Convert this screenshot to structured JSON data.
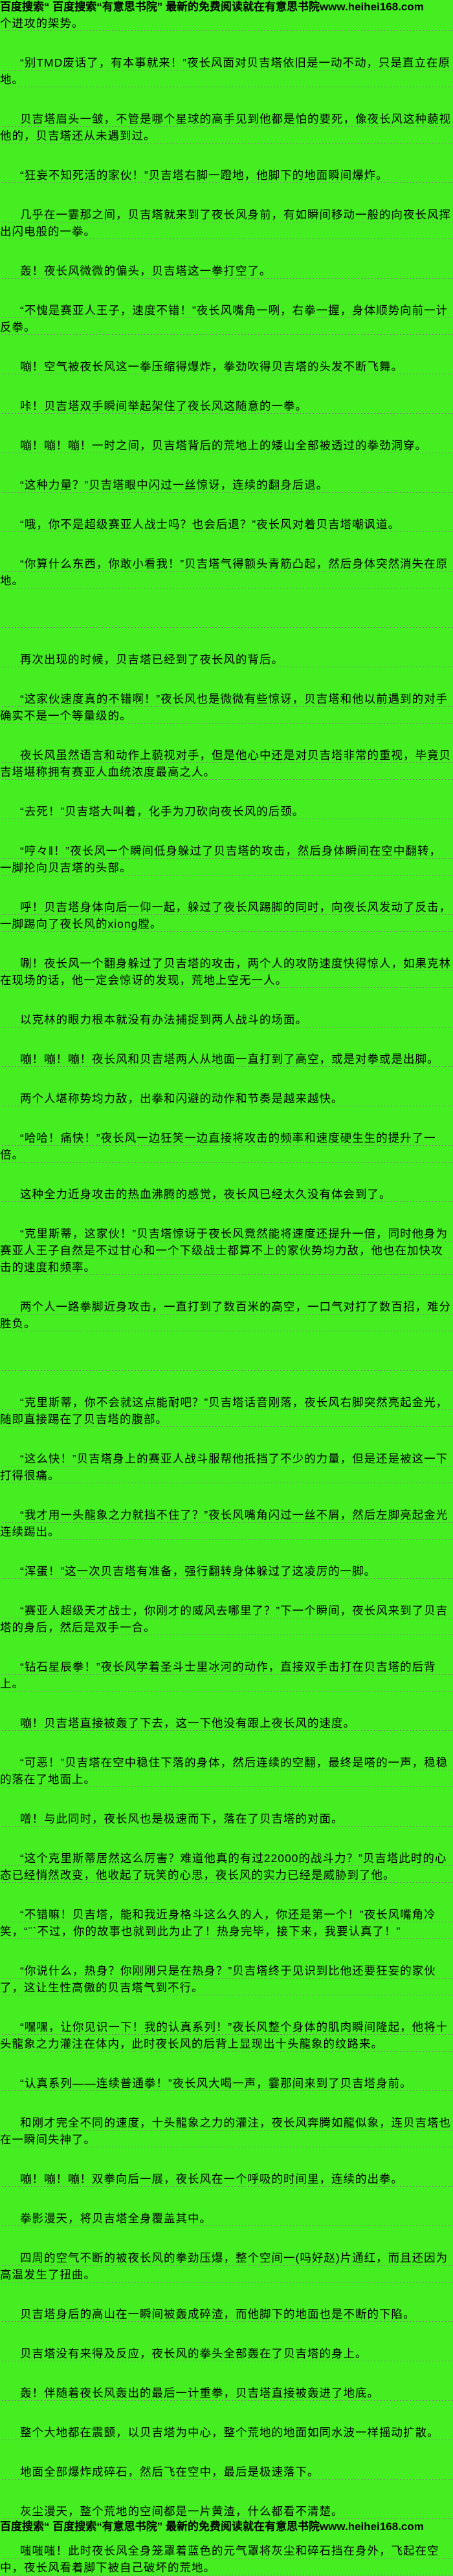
{
  "colors": {
    "background": "#44ee21",
    "text": "#000000",
    "divider_dash": "#8a7a8a"
  },
  "header": {
    "text": "百度搜索“ 百度搜索“有意思书院” 最新的免费阅读就在有意思书院www.heihei168.com"
  },
  "footer": {
    "text": "百度搜索“ 百度搜索“有意思书院” 最新的免费阅读就在有意思书院www.heihei168.com"
  },
  "content": {
    "site_name": "有意思书院",
    "site_url": "www.heihei168.com",
    "paragraphs": [
      "个进攻的架势。",
      "“别TMD废话了，有本事就来！”夜长风面对贝吉塔依旧是一动不动，只是直立在原地。",
      "贝吉塔眉头一皱，不管是哪个星球的高手见到他都是怕的要死，像夜长风这种藐视他的，贝吉塔还从未遇到过。",
      "“狂妄不知死活的家伙！”贝吉塔右脚一蹬地，他脚下的地面瞬间爆炸。",
      "几乎在一霎那之间，贝吉塔就来到了夜长风身前，有如瞬间移动一般的向夜长风挥出闪电般的一拳。",
      "轰！夜长风微微的偏头，贝吉塔这一拳打空了。",
      "“不愧是赛亚人王子，速度不错！”夜长风嘴角一咧，右拳一握，身体顺势向前一计反拳。",
      "嘣！空气被夜长风这一拳压缩得爆炸，拳劲吹得贝吉塔的头发不断飞舞。",
      "咔！贝吉塔双手瞬间举起架住了夜长风这随意的一拳。",
      "嘣！嘣！嘣！一时之间，贝吉塔背后的荒地上的矮山全部被透过的拳劲洞穿。",
      "“这种力量？”贝吉塔眼中闪过一丝惊讶，连续的翻身后退。",
      "“哦，你不是超级赛亚人战士吗？也会后退？”夜长风对着贝吉塔嘲讽道。",
      "“你算什么东西，你敢小看我！”贝吉塔气得额头青筋凸起，然后身体突然消失在原地。",
      "",
      "再次出现的时候，贝吉塔已经到了夜长风的背后。",
      "“这家伙速度真的不错啊！”夜长风也是微微有些惊讶，贝吉塔和他以前遇到的对手确实不是一个等量级的。",
      "夜长风虽然语言和动作上藐视对手，但是他心中还是对贝吉塔非常的重视，毕竟贝吉塔堪称拥有赛亚人血统浓度最高之人。",
      "“去死！”贝吉塔大叫着，化手为刀砍向夜长风的后颈。",
      "“哼々‖！”夜长风一个瞬间低身躲过了贝吉塔的攻击，然后身体瞬间在空中翻转，一脚抡向贝吉塔的头部。",
      "呼！贝吉塔身体向后一仰一起，躲过了夜长风踢脚的同时，向夜长风发动了反击，一脚踢向了夜长风的xiong膛。",
      "唰！夜长风一个翻身躲过了贝吉塔的攻击，两个人的攻防速度快得惊人，如果克林在现场的话，他一定会惊讶的发现，荒地上空无一人。",
      "以克林的眼力根本就没有办法捕捉到两人战斗的场面。",
      "嘣！嘣！嘣！夜长风和贝吉塔两人从地面一直打到了高空，或是对拳或是出脚。",
      "两个人堪称势均力敌，出拳和闪避的动作和节奏是越来越快。",
      "“哈哈！痛快！”夜长风一边狂笑一边直接将攻击的频率和速度硬生生的提升了一倍。",
      "这种全力近身攻击的热血沸腾的感觉，夜长风已经太久没有体会到了。",
      "“克里斯蒂，这家伙！”贝吉塔惊讶于夜长风竟然能将速度还提升一倍，同时他身为赛亚人王子自然是不过甘心和一个下级战士都算不上的家伙势均力敌，他也在加快攻击的速度和频率。",
      "两个人一路拳脚近身攻击，一直打到了数百米的高空，一口气对打了数百招，难分胜负。",
      "",
      "“克里斯蒂，你不会就这点能耐吧？”贝吉塔话音刚落，夜长风右脚突然亮起金光，随即直接踢在了贝吉塔的腹部。",
      "“这么快！”贝吉塔身上的赛亚人战斗服帮他抵挡了不少的力量，但是还是被这一下打得很痛。",
      "“我才用一头龍象之力就挡不住了？”夜长风嘴角闪过一丝不屑，然后左脚亮起金光连续踢出。",
      "“浑蛋！”这一次贝吉塔有准备，强行翻转身体躲过了这凌厉的一脚。",
      "“赛亚人超级天才战士，你刚才的威风去哪里了？”下一个瞬间，夜长风来到了贝吉塔的身后，然后是双手一合。",
      "“钻石星辰拳！”夜长风学着圣斗士里冰河的动作，直接双手击打在贝吉塔的后背上。",
      "嘣！贝吉塔直接被轰了下去，这一下他没有跟上夜长风的速度。",
      "“可恶！”贝吉塔在空中稳住下落的身体，然后连续的空翻，最终是嗒的一声，稳稳的落在了地面上。",
      "噌！与此同时，夜长风也是极速而下，落在了贝吉塔的对面。",
      "“这个克里斯蒂居然这么厉害？难道他真的有过22000的战斗力？”贝吉塔此时的心态已经悄然改变，他收起了玩笑的心思，夜长风的实力已经是威胁到了他。",
      "“不错嘛！贝吉塔，能和我近身格斗这么久的人，你还是第一个！”夜长风嘴角冷笑，“¨ˋ不过，你的故事也就到此为止了！热身完毕，接下来，我要认真了！”",
      "“你说什么，热身？你刚刚只是在热身？”贝吉塔终于见识到比他还要狂妄的家伙了，这让生性高傲的贝吉塔气到不行。",
      "“嘿嘿，让你见识一下！我的认真系列！”夜长风整个身体的肌肉瞬间隆起，他将十头龍象之力灌注在体内，此时夜长风的后背上显现出十头龍象的纹路来。",
      "“认真系列——连续普通拳！”夜长风大喝一声，霎那间来到了贝吉塔身前。",
      "和刚才完全不同的速度，十头龍象之力的灌注，夜长风奔腾如龍似象，连贝吉塔也在一瞬间失神了。",
      "嘣！嘣！嘣！双拳向后一展，夜长风在一个呼吸的时间里，连续的出拳。",
      "拳影漫天，将贝吉塔全身覆盖其中。",
      "四周的空气不断的被夜长风的拳劲压爆，整个空间一(吗好赵)片通红，而且还因为高温发生了扭曲。",
      "贝吉塔身后的高山在一瞬间被轰成碎渣，而他脚下的地面也是不断的下陷。",
      "贝吉塔没有来得及反应，夜长风的拳头全部轰在了贝吉塔的身上。",
      "轰！伴随着夜长风轰出的最后一计重拳，贝吉塔直接被轰进了地底。",
      "整个大地都在震颤，以贝吉塔为中心，整个荒地的地面如同水波一样摇动扩散。",
      "地面全部爆炸成碎石，然后飞在空中，最后是极速落下。",
      "灰尘漫天，整个荒地的空间都是一片黄渣，什么都看不清楚。",
      "嗤嗤嗤！此时夜长风全身笼罩着蓝色的元气罩将灰尘和碎石挡在身外，飞起在空中，夜长风看着脚下被自己破坏的荒地。"
    ]
  }
}
